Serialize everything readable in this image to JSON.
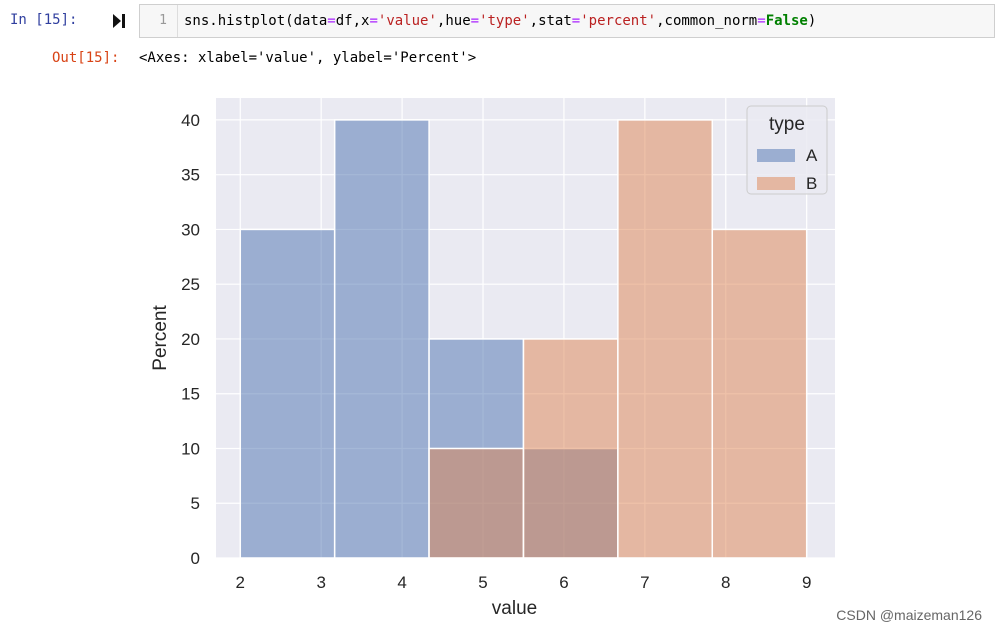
{
  "cell": {
    "in_prompt": "In  [15]:",
    "line_number": "1",
    "code_tokens": [
      {
        "t": "sns.histplot(data",
        "c": ""
      },
      {
        "t": "=",
        "c": "op"
      },
      {
        "t": "df,x",
        "c": ""
      },
      {
        "t": "=",
        "c": "op"
      },
      {
        "t": "'value'",
        "c": "str"
      },
      {
        "t": ",hue",
        "c": ""
      },
      {
        "t": "=",
        "c": "op"
      },
      {
        "t": "'type'",
        "c": "str"
      },
      {
        "t": ",stat",
        "c": ""
      },
      {
        "t": "=",
        "c": "op"
      },
      {
        "t": "'percent'",
        "c": "str"
      },
      {
        "t": ",common_norm",
        "c": ""
      },
      {
        "t": "=",
        "c": "op"
      },
      {
        "t": "False",
        "c": "kw"
      },
      {
        "t": ")",
        "c": ""
      }
    ],
    "out_prompt": "Out[15]:",
    "output_text": "<Axes: xlabel='value', ylabel='Percent'>"
  },
  "icons": {
    "run": "run-cell-icon"
  },
  "watermark": "CSDN @maizeman126",
  "colors": {
    "series_A": "#4c72b0",
    "series_B": "#dd8452",
    "axes_bg": "#eaeaf2",
    "grid": "#ffffff",
    "in_prompt": "#303f9f",
    "out_prompt": "#d84315"
  },
  "chart_data": {
    "type": "bar",
    "subtype": "histogram",
    "xlabel": "value",
    "ylabel": "Percent",
    "xlim": [
      1.7,
      9.35
    ],
    "ylim": [
      0,
      42
    ],
    "xticks": [
      2,
      3,
      4,
      5,
      6,
      7,
      8,
      9
    ],
    "yticks": [
      0,
      5,
      10,
      15,
      20,
      25,
      30,
      35,
      40
    ],
    "grid": true,
    "legend": {
      "title": "type",
      "placement": "top-right",
      "entries": [
        "A",
        "B"
      ]
    },
    "bin_edges": [
      2.0,
      3.1667,
      4.3333,
      5.5,
      6.6667,
      7.8333,
      9.0
    ],
    "series": [
      {
        "name": "A",
        "values": [
          30,
          40,
          20,
          10,
          0,
          0
        ]
      },
      {
        "name": "B",
        "values": [
          0,
          0,
          10,
          20,
          40,
          30
        ]
      }
    ]
  }
}
